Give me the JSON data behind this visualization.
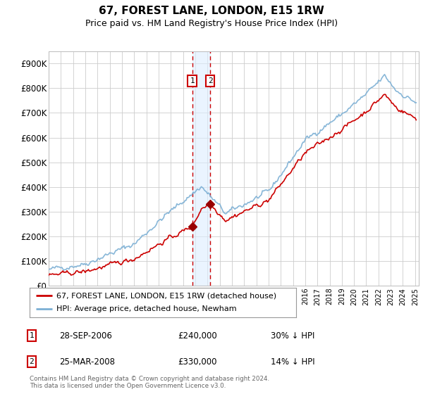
{
  "title": "67, FOREST LANE, LONDON, E15 1RW",
  "subtitle": "Price paid vs. HM Land Registry's House Price Index (HPI)",
  "ylim": [
    0,
    950000
  ],
  "yticks": [
    0,
    100000,
    200000,
    300000,
    400000,
    500000,
    600000,
    700000,
    800000,
    900000
  ],
  "ytick_labels": [
    "£0",
    "£100K",
    "£200K",
    "£300K",
    "£400K",
    "£500K",
    "£600K",
    "£700K",
    "£800K",
    "£900K"
  ],
  "hpi_color": "#7bafd4",
  "price_color": "#cc0000",
  "marker_color": "#990000",
  "transaction1_date": 2006.75,
  "transaction1_price": 240000,
  "transaction2_date": 2008.23,
  "transaction2_price": 330000,
  "shade_color": "#ddeeff",
  "legend_label_price": "67, FOREST LANE, LONDON, E15 1RW (detached house)",
  "legend_label_hpi": "HPI: Average price, detached house, Newham",
  "note1_label": "1",
  "note1_date": "28-SEP-2006",
  "note1_price": "£240,000",
  "note1_hpi": "30% ↓ HPI",
  "note2_label": "2",
  "note2_date": "25-MAR-2008",
  "note2_price": "£330,000",
  "note2_hpi": "14% ↓ HPI",
  "footer": "Contains HM Land Registry data © Crown copyright and database right 2024.\nThis data is licensed under the Open Government Licence v3.0.",
  "background_color": "#ffffff",
  "grid_color": "#cccccc"
}
